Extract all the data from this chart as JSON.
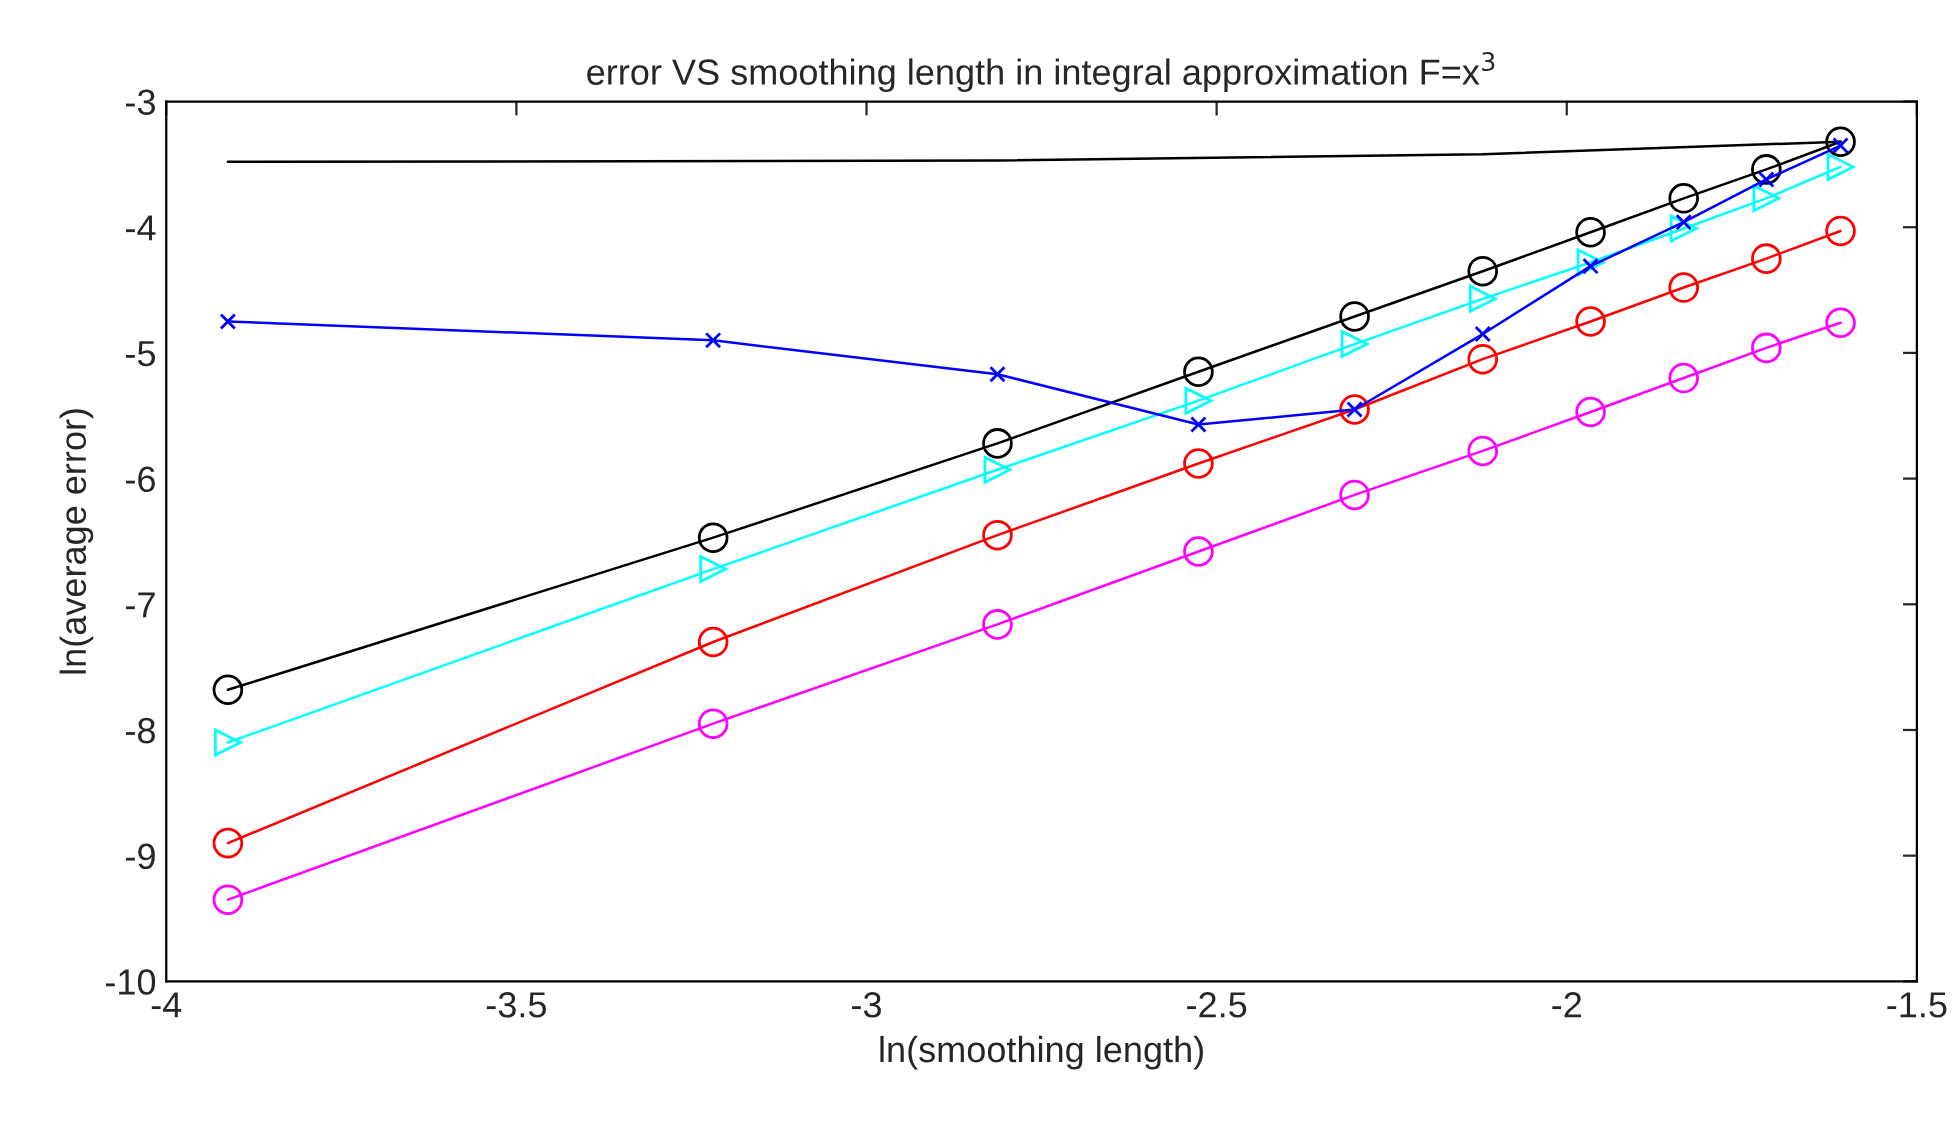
{
  "chart_data": {
    "type": "line",
    "title": "error VS smoothing length in integral approximation F=x$^{3}$",
    "xlabel": "ln(smoothing length)",
    "ylabel": "ln(average error)",
    "x": [
      -3.912,
      -3.219,
      -2.813,
      -2.526,
      -2.303,
      -2.12,
      -1.966,
      -1.833,
      -1.715,
      -1.609
    ],
    "series": [
      {
        "color": "#000000",
        "marker": "none",
        "values": [
          -3.48,
          null,
          -3.47,
          null,
          null,
          -3.42,
          null,
          null,
          null,
          -3.32
        ]
      },
      {
        "color": "#000000",
        "marker": "circle",
        "values": [
          -7.68,
          -6.47,
          -5.72,
          -5.15,
          -4.71,
          -4.35,
          -4.04,
          -3.77,
          -3.54,
          -3.32
        ]
      },
      {
        "color": "#00ffff",
        "marker": "triangle",
        "values": [
          -8.1,
          -6.72,
          -5.93,
          -5.38,
          -4.93,
          -4.57,
          -4.28,
          -4.01,
          -3.77,
          -3.52
        ]
      },
      {
        "color": "#ff0000",
        "marker": "circle",
        "values": [
          -8.9,
          -7.3,
          -6.45,
          -5.88,
          -5.45,
          -5.05,
          -4.75,
          -4.48,
          -4.25,
          -4.03
        ]
      },
      {
        "color": "#ff00ff",
        "marker": "circle",
        "values": [
          -9.35,
          -7.95,
          -7.16,
          -6.58,
          -6.13,
          -5.78,
          -5.47,
          -5.2,
          -4.96,
          -4.76
        ]
      },
      {
        "color": "#0000ff",
        "marker": "cross",
        "values": [
          -4.75,
          -4.9,
          -5.17,
          -5.57,
          -5.45,
          -4.85,
          -4.31,
          -3.96,
          -3.62,
          -3.35
        ]
      }
    ],
    "xlim": [
      -4,
      -1.5
    ],
    "xticks": [
      -4,
      -3.5,
      -3,
      -2.5,
      -2,
      -1.5
    ],
    "ylim": [
      -10,
      -3
    ],
    "yticks": [
      -10,
      -9,
      -8,
      -7,
      -6,
      -5,
      -4,
      -3
    ],
    "grid": false,
    "legend": false
  }
}
